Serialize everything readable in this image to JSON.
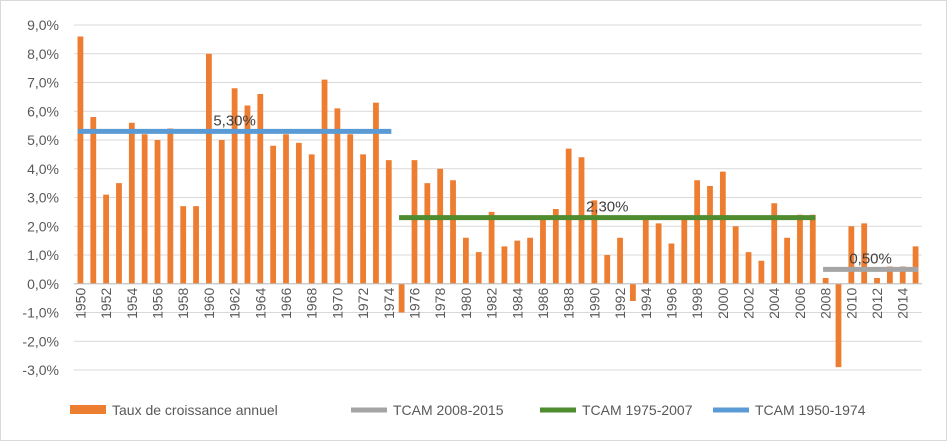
{
  "chart_data": {
    "type": "bar",
    "x": [
      1950,
      1951,
      1952,
      1953,
      1954,
      1955,
      1956,
      1957,
      1958,
      1959,
      1960,
      1961,
      1962,
      1963,
      1964,
      1965,
      1966,
      1967,
      1968,
      1969,
      1970,
      1971,
      1972,
      1973,
      1974,
      1975,
      1976,
      1977,
      1978,
      1979,
      1980,
      1981,
      1982,
      1983,
      1984,
      1985,
      1986,
      1987,
      1988,
      1989,
      1990,
      1991,
      1992,
      1993,
      1994,
      1995,
      1996,
      1997,
      1998,
      1999,
      2000,
      2001,
      2002,
      2003,
      2004,
      2005,
      2006,
      2007,
      2008,
      2009,
      2010,
      2011,
      2012,
      2013,
      2014,
      2015
    ],
    "x_tick_labels": [
      "1950",
      "1952",
      "1954",
      "1956",
      "1958",
      "1960",
      "1962",
      "1964",
      "1966",
      "1968",
      "1970",
      "1972",
      "1974",
      "1976",
      "1978",
      "1980",
      "1982",
      "1984",
      "1986",
      "1988",
      "1990",
      "1992",
      "1994",
      "1996",
      "1998",
      "2000",
      "2002",
      "2004",
      "2006",
      "2008",
      "2010",
      "2012",
      "2014"
    ],
    "series": [
      {
        "name": "Taux de croissance annuel",
        "color": "#ed7d31",
        "values": [
          8.6,
          5.8,
          3.1,
          3.5,
          5.6,
          5.2,
          5.0,
          5.4,
          2.7,
          2.7,
          8.0,
          5.0,
          6.8,
          6.2,
          6.6,
          4.8,
          5.2,
          4.9,
          4.5,
          7.1,
          6.1,
          5.2,
          4.5,
          6.3,
          4.3,
          -1.0,
          4.3,
          3.5,
          4.0,
          3.6,
          1.6,
          1.1,
          2.5,
          1.3,
          1.5,
          1.6,
          2.3,
          2.6,
          4.7,
          4.4,
          2.9,
          1.0,
          1.6,
          -0.6,
          2.3,
          2.1,
          1.4,
          2.3,
          3.6,
          3.4,
          3.9,
          2.0,
          1.1,
          0.8,
          2.8,
          1.6,
          2.4,
          2.4,
          0.2,
          -2.9,
          2.0,
          2.1,
          0.2,
          0.6,
          0.6,
          1.3
        ]
      }
    ],
    "reference_lines": [
      {
        "name": "TCAM 2008-2015",
        "color": "#a5a5a5",
        "value": 0.5,
        "x_start": 2008,
        "x_end": 2015,
        "label": "0,50%"
      },
      {
        "name": "TCAM 1975-2007",
        "color": "#4e8c2f",
        "value": 2.3,
        "x_start": 1975,
        "x_end": 2007,
        "label": "2,30%"
      },
      {
        "name": "TCAM 1950-1974",
        "color": "#5b9bd5",
        "value": 5.3,
        "x_start": 1950,
        "x_end": 1974,
        "label": "5,30%"
      }
    ],
    "y_ticks": [
      -3,
      -2,
      -1,
      0,
      1,
      2,
      3,
      4,
      5,
      6,
      7,
      8,
      9
    ],
    "y_tick_labels": [
      "-3,0%",
      "-2,0%",
      "-1,0%",
      "0,0%",
      "1,0%",
      "2,0%",
      "3,0%",
      "4,0%",
      "5,0%",
      "6,0%",
      "7,0%",
      "8,0%",
      "9,0%"
    ],
    "ylim": [
      -3,
      9
    ],
    "grid": true,
    "legend_position": "bottom",
    "legend": [
      "Taux de croissance annuel",
      "TCAM 2008-2015",
      "TCAM 1975-2007",
      "TCAM 1950-1974"
    ],
    "title": "",
    "xlabel": "",
    "ylabel": ""
  }
}
